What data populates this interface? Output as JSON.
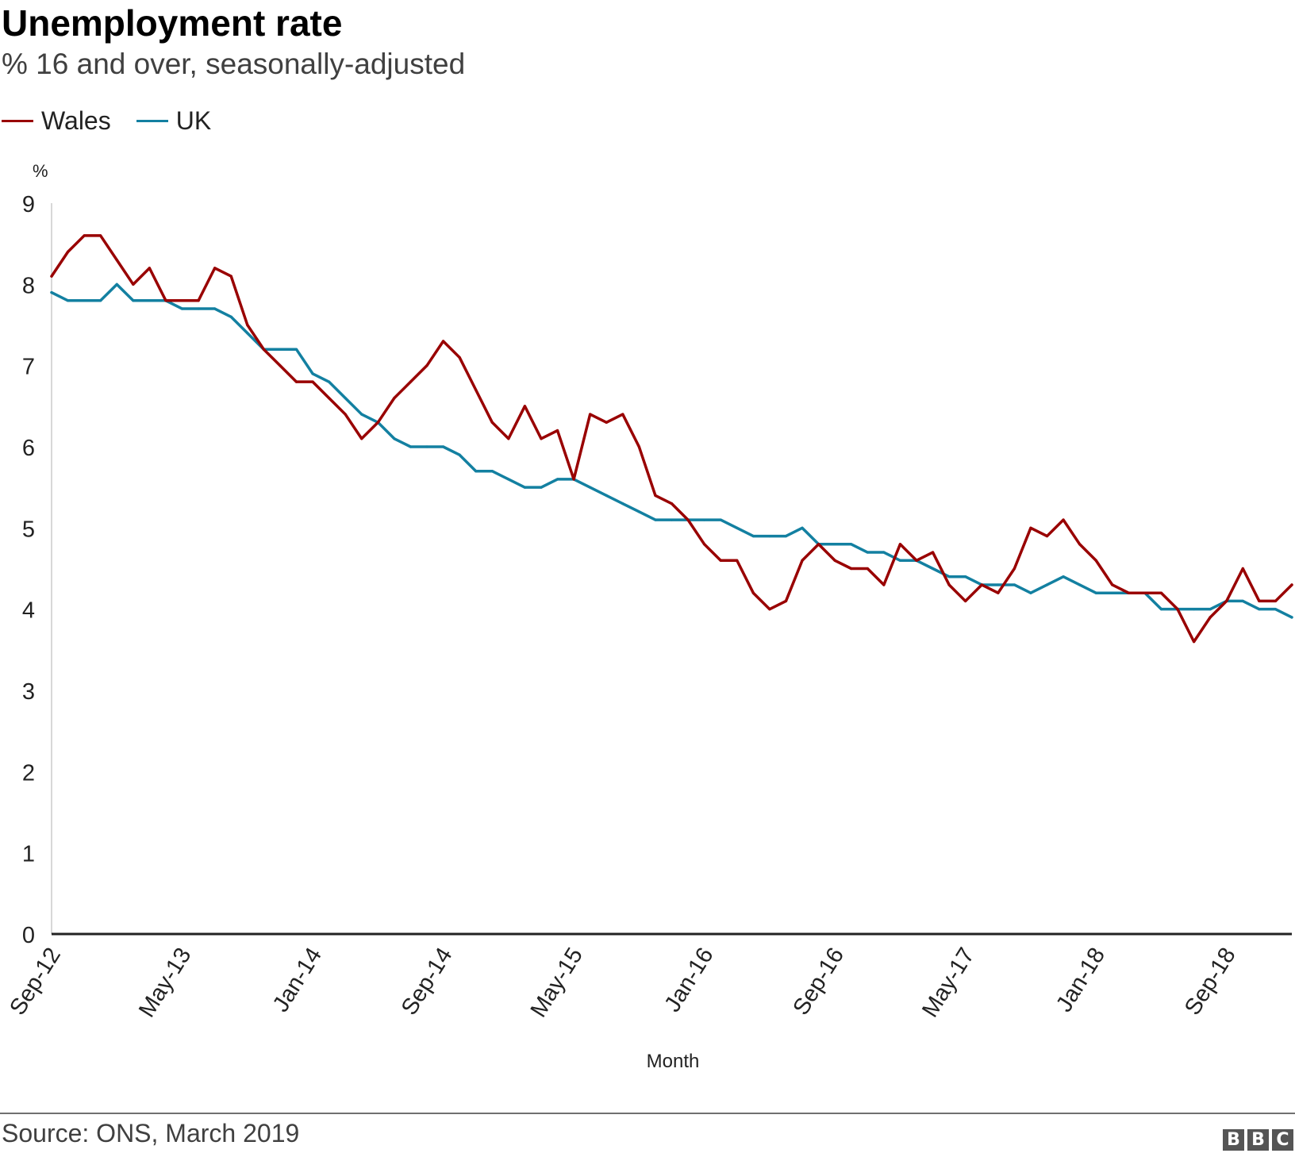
{
  "header": {
    "title": "Unemployment rate",
    "subtitle": "% 16 and over, seasonally-adjusted"
  },
  "legend": {
    "items": [
      {
        "label": "Wales",
        "color": "#990000"
      },
      {
        "label": "UK",
        "color": "#1380A1"
      }
    ]
  },
  "footer": {
    "source": "Source: ONS, March 2019",
    "logo_letters": [
      "B",
      "B",
      "C"
    ]
  },
  "chart_data": {
    "type": "line",
    "title": "Unemployment rate",
    "subtitle": "% 16 and over, seasonally-adjusted",
    "xlabel": "Month",
    "ylabel": "%",
    "ylim": [
      0,
      9
    ],
    "yticks": [
      0,
      1,
      2,
      3,
      4,
      5,
      6,
      7,
      8,
      9
    ],
    "x_tick_labels": [
      "Sep-12",
      "May-13",
      "Jan-14",
      "Sep-14",
      "May-15",
      "Jan-16",
      "Sep-16",
      "May-17",
      "Jan-18",
      "Sep-18"
    ],
    "x_tick_interval_months": 8,
    "x_start": "Sep-12",
    "x_end": "Jan-19",
    "grid": false,
    "legend_position": "top-left",
    "series": [
      {
        "name": "Wales",
        "color": "#990000",
        "values": [
          8.1,
          8.4,
          8.6,
          8.6,
          8.3,
          8.0,
          8.2,
          7.8,
          7.8,
          7.8,
          8.2,
          8.1,
          7.5,
          7.2,
          7.0,
          6.8,
          6.8,
          6.6,
          6.4,
          6.1,
          6.3,
          6.6,
          6.8,
          7.0,
          7.3,
          7.1,
          6.7,
          6.3,
          6.1,
          6.5,
          6.1,
          6.2,
          5.6,
          6.4,
          6.3,
          6.4,
          6.0,
          5.4,
          5.3,
          5.1,
          4.8,
          4.6,
          4.6,
          4.2,
          4.0,
          4.1,
          4.6,
          4.8,
          4.6,
          4.5,
          4.5,
          4.3,
          4.8,
          4.6,
          4.7,
          4.3,
          4.1,
          4.3,
          4.2,
          4.5,
          5.0,
          4.9,
          5.1,
          4.8,
          4.6,
          4.3,
          4.2,
          4.2,
          4.2,
          4.0,
          3.6,
          3.9,
          4.1,
          4.5,
          4.1,
          4.1,
          4.3
        ]
      },
      {
        "name": "UK",
        "color": "#1380A1",
        "values": [
          7.9,
          7.8,
          7.8,
          7.8,
          8.0,
          7.8,
          7.8,
          7.8,
          7.7,
          7.7,
          7.7,
          7.6,
          7.4,
          7.2,
          7.2,
          7.2,
          6.9,
          6.8,
          6.6,
          6.4,
          6.3,
          6.1,
          6.0,
          6.0,
          6.0,
          5.9,
          5.7,
          5.7,
          5.6,
          5.5,
          5.5,
          5.6,
          5.6,
          5.5,
          5.4,
          5.3,
          5.2,
          5.1,
          5.1,
          5.1,
          5.1,
          5.1,
          5.0,
          4.9,
          4.9,
          4.9,
          5.0,
          4.8,
          4.8,
          4.8,
          4.7,
          4.7,
          4.6,
          4.6,
          4.5,
          4.4,
          4.4,
          4.3,
          4.3,
          4.3,
          4.2,
          4.3,
          4.4,
          4.3,
          4.2,
          4.2,
          4.2,
          4.2,
          4.0,
          4.0,
          4.0,
          4.0,
          4.1,
          4.1,
          4.0,
          4.0,
          3.9
        ]
      }
    ]
  }
}
